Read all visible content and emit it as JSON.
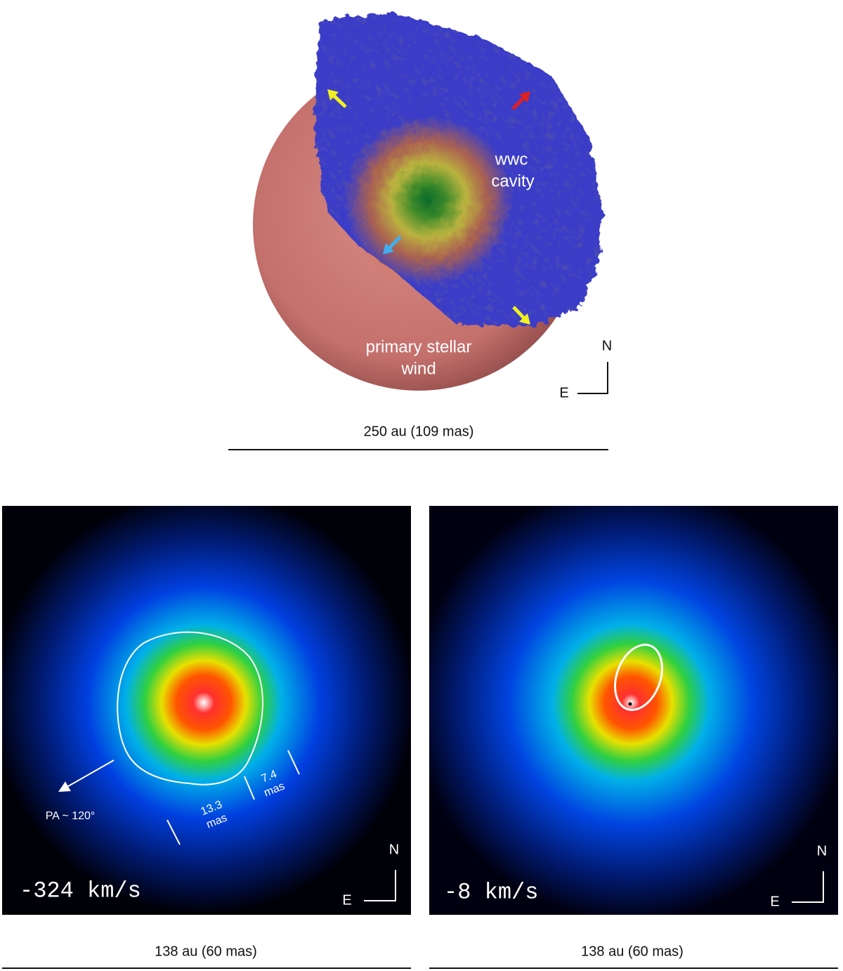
{
  "top_panel": {
    "cavity_label": [
      "wwc",
      "cavity"
    ],
    "wind_label": [
      "primary stellar",
      "wind"
    ],
    "compass": {
      "north": "N",
      "east": "E"
    },
    "scale_bar": "250 au (109 mas)"
  },
  "bottom_panels": [
    {
      "velocity": "-324 km/s",
      "annotations": {
        "width_major": [
          "13.3",
          "mas"
        ],
        "width_minor": [
          "7.4",
          "mas"
        ],
        "position_angle": "PA ~ 120°"
      },
      "compass": {
        "north": "N",
        "east": "E"
      },
      "scale_bar": "138 au (60 mas)"
    },
    {
      "velocity": "-8 km/s",
      "compass": {
        "north": "N",
        "east": "E"
      },
      "scale_bar": "138 au (60 mas)"
    }
  ]
}
